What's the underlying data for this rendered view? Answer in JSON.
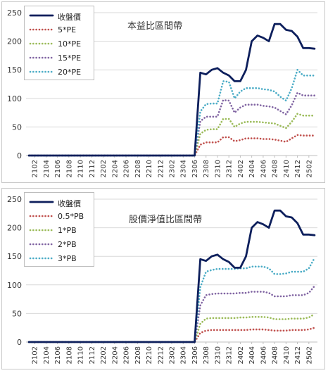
{
  "chart_data": [
    {
      "type": "line",
      "title": "本益比區間帶",
      "xlabel": "",
      "ylabel": "",
      "ylim": [
        0,
        250
      ],
      "yticks": [
        0,
        50,
        100,
        150,
        200,
        250
      ],
      "xtick_labels": [
        "2102",
        "2104",
        "2106",
        "2108",
        "2110",
        "2112",
        "2202",
        "2204",
        "2206",
        "2208",
        "2210",
        "2212",
        "2302",
        "2304",
        "2306",
        "2308",
        "2310",
        "2312",
        "2402",
        "2404",
        "2406",
        "2408",
        "2410",
        "2412",
        "2502"
      ],
      "legend_position": "top-left",
      "grid": "horizontal",
      "x": [
        "2101",
        "2102",
        "2103",
        "2104",
        "2105",
        "2106",
        "2107",
        "2108",
        "2109",
        "2110",
        "2111",
        "2112",
        "2201",
        "2202",
        "2203",
        "2204",
        "2205",
        "2206",
        "2207",
        "2208",
        "2209",
        "2210",
        "2211",
        "2212",
        "2301",
        "2302",
        "2303",
        "2304",
        "2305",
        "2306",
        "2307",
        "2308",
        "2309",
        "2310",
        "2311",
        "2312",
        "2401",
        "2402",
        "2403",
        "2404",
        "2405",
        "2406",
        "2407",
        "2408",
        "2409",
        "2410",
        "2411",
        "2412",
        "2501",
        "2502",
        "2503"
      ],
      "series": [
        {
          "name": "收盤價",
          "color": "#0d1f5c",
          "style": "solid",
          "values": [
            0,
            0,
            0,
            0,
            0,
            0,
            0,
            0,
            0,
            0,
            0,
            0,
            0,
            0,
            0,
            0,
            0,
            0,
            0,
            0,
            0,
            0,
            0,
            0,
            0,
            0,
            0,
            0,
            0,
            0,
            145,
            142,
            150,
            153,
            145,
            140,
            130,
            130,
            150,
            200,
            210,
            206,
            200,
            230,
            230,
            220,
            218,
            208,
            188,
            188,
            187
          ]
        },
        {
          "name": "5*PE",
          "color": "#c0504d",
          "style": "dotted",
          "values": [
            0,
            0,
            0,
            0,
            0,
            0,
            0,
            0,
            0,
            0,
            0,
            0,
            0,
            0,
            0,
            0,
            0,
            0,
            0,
            0,
            0,
            0,
            0,
            0,
            0,
            0,
            0,
            0,
            0,
            0,
            19,
            23,
            23,
            23,
            32,
            32,
            25,
            27,
            30,
            30,
            30,
            29,
            29,
            28,
            26,
            24,
            30,
            36,
            35,
            35,
            35
          ]
        },
        {
          "name": "10*PE",
          "color": "#9bbb59",
          "style": "dotted",
          "values": [
            0,
            0,
            0,
            0,
            0,
            0,
            0,
            0,
            0,
            0,
            0,
            0,
            0,
            0,
            0,
            0,
            0,
            0,
            0,
            0,
            0,
            0,
            0,
            0,
            0,
            0,
            0,
            0,
            0,
            0,
            38,
            45,
            46,
            46,
            64,
            64,
            50,
            56,
            59,
            59,
            59,
            58,
            57,
            56,
            52,
            48,
            59,
            73,
            70,
            70,
            70
          ]
        },
        {
          "name": "15*PE",
          "color": "#8064a2",
          "style": "dotted",
          "values": [
            0,
            0,
            0,
            0,
            0,
            0,
            0,
            0,
            0,
            0,
            0,
            0,
            0,
            0,
            0,
            0,
            0,
            0,
            0,
            0,
            0,
            0,
            0,
            0,
            0,
            0,
            0,
            0,
            0,
            0,
            60,
            68,
            68,
            68,
            97,
            96,
            75,
            84,
            89,
            89,
            89,
            87,
            86,
            84,
            78,
            72,
            88,
            110,
            105,
            105,
            105
          ]
        },
        {
          "name": "20*PE",
          "color": "#4bacc6",
          "style": "dotted",
          "values": [
            0,
            0,
            0,
            0,
            0,
            0,
            0,
            0,
            0,
            0,
            0,
            0,
            0,
            0,
            0,
            0,
            0,
            0,
            0,
            0,
            0,
            0,
            0,
            0,
            0,
            0,
            0,
            0,
            0,
            0,
            77,
            90,
            91,
            91,
            130,
            129,
            100,
            112,
            118,
            118,
            118,
            116,
            115,
            112,
            103,
            96,
            118,
            150,
            140,
            140,
            140
          ]
        }
      ]
    },
    {
      "type": "line",
      "title": "股價淨值比區間帶",
      "xlabel": "",
      "ylabel": "",
      "ylim": [
        0,
        250
      ],
      "yticks": [
        0,
        50,
        100,
        150,
        200,
        250
      ],
      "xtick_labels": [
        "2102",
        "2104",
        "2106",
        "2108",
        "2110",
        "2112",
        "2202",
        "2204",
        "2206",
        "2208",
        "2210",
        "2212",
        "2302",
        "2304",
        "2306",
        "2308",
        "2310",
        "2312",
        "2402",
        "2404",
        "2406",
        "2408",
        "2410",
        "2412",
        "2502"
      ],
      "legend_position": "top-left",
      "grid": "horizontal",
      "x": [
        "2101",
        "2102",
        "2103",
        "2104",
        "2105",
        "2106",
        "2107",
        "2108",
        "2109",
        "2110",
        "2111",
        "2112",
        "2201",
        "2202",
        "2203",
        "2204",
        "2205",
        "2206",
        "2207",
        "2208",
        "2209",
        "2210",
        "2211",
        "2212",
        "2301",
        "2302",
        "2303",
        "2304",
        "2305",
        "2306",
        "2307",
        "2308",
        "2309",
        "2310",
        "2311",
        "2312",
        "2401",
        "2402",
        "2403",
        "2404",
        "2405",
        "2406",
        "2407",
        "2408",
        "2409",
        "2410",
        "2411",
        "2412",
        "2501",
        "2502",
        "2503"
      ],
      "series": [
        {
          "name": "收盤價",
          "color": "#0d1f5c",
          "style": "solid",
          "values": [
            0,
            0,
            0,
            0,
            0,
            0,
            0,
            0,
            0,
            0,
            0,
            0,
            0,
            0,
            0,
            0,
            0,
            0,
            0,
            0,
            0,
            0,
            0,
            0,
            0,
            0,
            0,
            0,
            0,
            0,
            145,
            142,
            150,
            153,
            145,
            140,
            130,
            130,
            150,
            200,
            210,
            206,
            200,
            230,
            230,
            220,
            218,
            208,
            188,
            188,
            187
          ]
        },
        {
          "name": "0.5*PB",
          "color": "#c0504d",
          "style": "dotted",
          "values": [
            0,
            0,
            0,
            0,
            0,
            0,
            0,
            0,
            0,
            0,
            0,
            0,
            0,
            0,
            0,
            0,
            0,
            0,
            0,
            0,
            0,
            0,
            0,
            0,
            0,
            0,
            0,
            0,
            0,
            0,
            16,
            20,
            21,
            21,
            21,
            21,
            21,
            21,
            21,
            22,
            22,
            22,
            21,
            20,
            20,
            20,
            21,
            21,
            21,
            22,
            25
          ]
        },
        {
          "name": "1*PB",
          "color": "#9bbb59",
          "style": "dotted",
          "values": [
            0,
            0,
            0,
            0,
            0,
            0,
            0,
            0,
            0,
            0,
            0,
            0,
            0,
            0,
            0,
            0,
            0,
            0,
            0,
            0,
            0,
            0,
            0,
            0,
            0,
            0,
            0,
            0,
            0,
            0,
            32,
            41,
            42,
            42,
            42,
            42,
            42,
            43,
            43,
            44,
            44,
            44,
            43,
            40,
            40,
            40,
            41,
            41,
            41,
            43,
            49
          ]
        },
        {
          "name": "2*PB",
          "color": "#8064a2",
          "style": "dotted",
          "values": [
            0,
            0,
            0,
            0,
            0,
            0,
            0,
            0,
            0,
            0,
            0,
            0,
            0,
            0,
            0,
            0,
            0,
            0,
            0,
            0,
            0,
            0,
            0,
            0,
            0,
            0,
            0,
            0,
            0,
            0,
            64,
            82,
            84,
            85,
            85,
            85,
            85,
            86,
            86,
            88,
            88,
            88,
            86,
            80,
            80,
            80,
            82,
            82,
            82,
            86,
            98
          ]
        },
        {
          "name": "3*PB",
          "color": "#4bacc6",
          "style": "dotted",
          "values": [
            0,
            0,
            0,
            0,
            0,
            0,
            0,
            0,
            0,
            0,
            0,
            0,
            0,
            0,
            0,
            0,
            0,
            0,
            0,
            0,
            0,
            0,
            0,
            0,
            0,
            0,
            0,
            0,
            0,
            0,
            96,
            123,
            126,
            128,
            128,
            128,
            128,
            129,
            129,
            132,
            132,
            132,
            129,
            119,
            119,
            120,
            123,
            123,
            123,
            129,
            147
          ]
        }
      ]
    }
  ]
}
